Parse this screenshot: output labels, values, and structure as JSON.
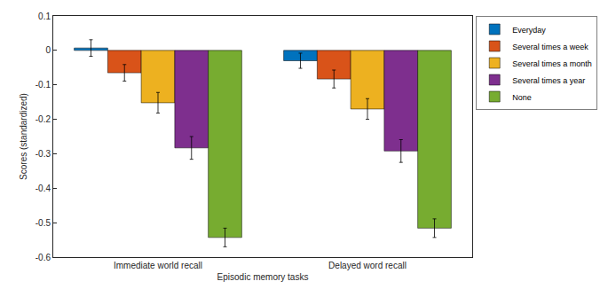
{
  "chart_data": {
    "type": "bar",
    "x_label": "Episodic memory tasks",
    "y_label": "Scores (standardized)",
    "categories": [
      "Immediate world recall",
      "Delayed word recall"
    ],
    "series": [
      {
        "name": "Everyday",
        "color": "#0072BD",
        "values": [
          0.007,
          -0.03
        ],
        "errors": [
          0.024,
          0.022
        ]
      },
      {
        "name": "Several times a week",
        "color": "#D95319",
        "values": [
          -0.065,
          -0.083
        ],
        "errors": [
          0.024,
          0.026
        ]
      },
      {
        "name": "Several times a month",
        "color": "#EDB120",
        "values": [
          -0.152,
          -0.17
        ],
        "errors": [
          0.03,
          0.03
        ]
      },
      {
        "name": "Several times a year",
        "color": "#7E2F8E",
        "values": [
          -0.283,
          -0.292
        ],
        "errors": [
          0.033,
          0.033
        ]
      },
      {
        "name": "None",
        "color": "#77AC30",
        "values": [
          -0.543,
          -0.516
        ],
        "errors": [
          0.027,
          0.027
        ]
      }
    ],
    "ylim": [
      -0.6,
      0.1
    ],
    "yticks": [
      -0.6,
      -0.5,
      -0.4,
      -0.3,
      -0.2,
      -0.1,
      0,
      0.1
    ],
    "grid": false,
    "legend": "top right"
  }
}
